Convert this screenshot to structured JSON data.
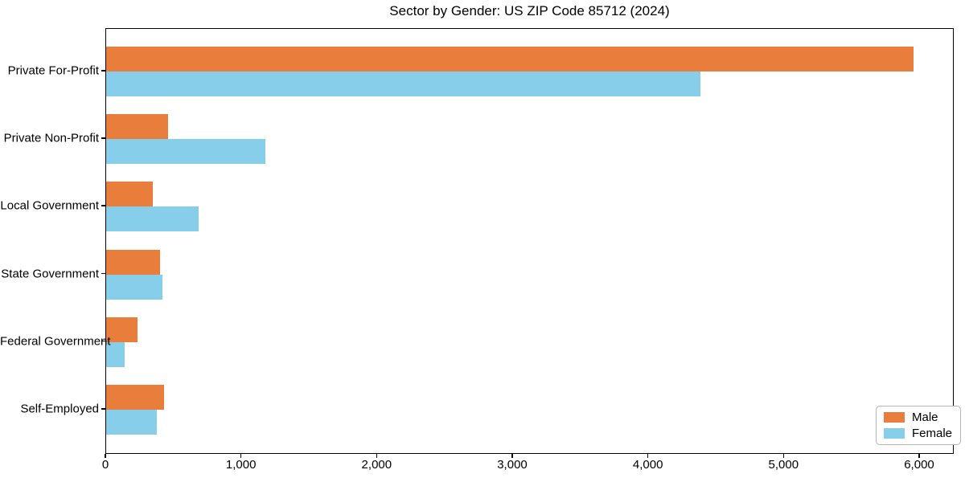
{
  "chart_data": {
    "type": "bar",
    "orientation": "horizontal",
    "title": "Sector by Gender: US ZIP Code 85712 (2024)",
    "xlabel": "",
    "ylabel": "",
    "categories": [
      "Private For-Profit",
      "Private Non-Profit",
      "Local Government",
      "State Government",
      "Federal Government",
      "Self-Employed"
    ],
    "series": [
      {
        "name": "Male",
        "color": "#E87D3C",
        "values": [
          5955,
          455,
          345,
          395,
          230,
          425
        ]
      },
      {
        "name": "Female",
        "color": "#87CEEB",
        "values": [
          4380,
          1175,
          680,
          415,
          135,
          375
        ]
      }
    ],
    "xlim": [
      0,
      6255
    ],
    "xticks": [
      0,
      1000,
      2000,
      3000,
      4000,
      5000,
      6000
    ],
    "xtick_labels": [
      "0",
      "1,000",
      "2,000",
      "3,000",
      "4,000",
      "5,000",
      "6,000"
    ],
    "grid": false,
    "legend_position": "lower right",
    "plot_background": "#ffffff",
    "axis_color": "#000000"
  }
}
